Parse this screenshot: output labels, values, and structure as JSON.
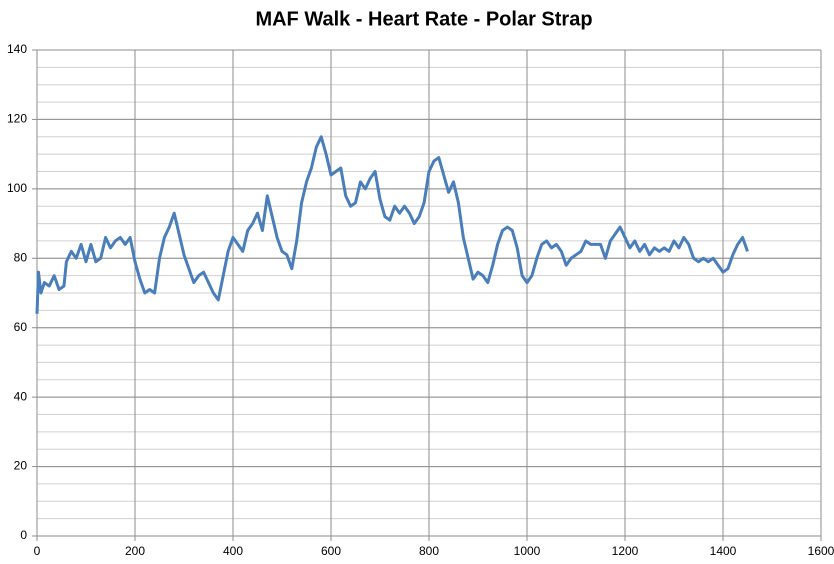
{
  "chart_data": {
    "type": "line",
    "title": "MAF Walk - Heart Rate - Polar Strap",
    "x": [
      0,
      3,
      8,
      15,
      25,
      35,
      45,
      55,
      60,
      70,
      80,
      90,
      100,
      110,
      120,
      130,
      140,
      150,
      160,
      170,
      180,
      190,
      200,
      210,
      220,
      230,
      240,
      250,
      260,
      270,
      280,
      290,
      300,
      310,
      320,
      330,
      340,
      350,
      360,
      370,
      380,
      390,
      400,
      410,
      420,
      430,
      440,
      450,
      460,
      470,
      480,
      490,
      500,
      510,
      520,
      530,
      540,
      550,
      560,
      570,
      580,
      590,
      600,
      610,
      620,
      630,
      640,
      650,
      660,
      670,
      680,
      690,
      700,
      710,
      720,
      730,
      740,
      750,
      760,
      770,
      780,
      790,
      800,
      810,
      820,
      830,
      840,
      850,
      860,
      870,
      880,
      890,
      900,
      910,
      920,
      930,
      940,
      950,
      960,
      970,
      980,
      990,
      1000,
      1010,
      1020,
      1030,
      1040,
      1050,
      1060,
      1070,
      1080,
      1090,
      1100,
      1110,
      1120,
      1130,
      1140,
      1150,
      1160,
      1170,
      1180,
      1190,
      1200,
      1210,
      1220,
      1230,
      1240,
      1250,
      1260,
      1270,
      1280,
      1290,
      1300,
      1310,
      1320,
      1330,
      1340,
      1350,
      1360,
      1370,
      1380,
      1390,
      1400,
      1410,
      1420,
      1430,
      1440,
      1450
    ],
    "series": [
      {
        "name": "Heart Rate",
        "color": "#4a7ebb",
        "values": [
          64,
          76,
          70,
          73,
          72,
          75,
          71,
          72,
          79,
          82,
          80,
          84,
          79,
          84,
          79,
          80,
          86,
          83,
          85,
          86,
          84,
          86,
          79,
          74,
          70,
          71,
          70,
          80,
          86,
          89,
          93,
          87,
          81,
          77,
          73,
          75,
          76,
          73,
          70,
          68,
          75,
          82,
          86,
          84,
          82,
          88,
          90,
          93,
          88,
          98,
          92,
          86,
          82,
          81,
          77,
          85,
          96,
          102,
          106,
          112,
          115,
          110,
          104,
          105,
          106,
          98,
          95,
          96,
          102,
          100,
          103,
          105,
          97,
          92,
          91,
          95,
          93,
          95,
          93,
          90,
          92,
          96,
          105,
          108,
          109,
          104,
          99,
          102,
          96,
          86,
          80,
          74,
          76,
          75,
          73,
          78,
          84,
          88,
          89,
          88,
          83,
          75,
          73,
          75,
          80,
          84,
          85,
          83,
          84,
          82,
          78,
          80,
          81,
          82,
          85,
          84,
          84,
          84,
          80,
          85,
          87,
          89,
          86,
          83,
          85,
          82,
          84,
          81,
          83,
          82,
          83,
          82,
          85,
          83,
          86,
          84,
          80,
          79,
          80,
          79,
          80,
          78,
          76,
          77,
          81,
          84,
          86,
          82
        ]
      }
    ],
    "xlim": [
      0,
      1600
    ],
    "xticks": [
      0,
      200,
      400,
      600,
      800,
      1000,
      1200,
      1400,
      1600
    ],
    "ylim": [
      0,
      140
    ],
    "yticks": [
      0,
      20,
      40,
      60,
      80,
      100,
      120,
      140
    ],
    "y_minor_step": 5,
    "grid": true
  }
}
